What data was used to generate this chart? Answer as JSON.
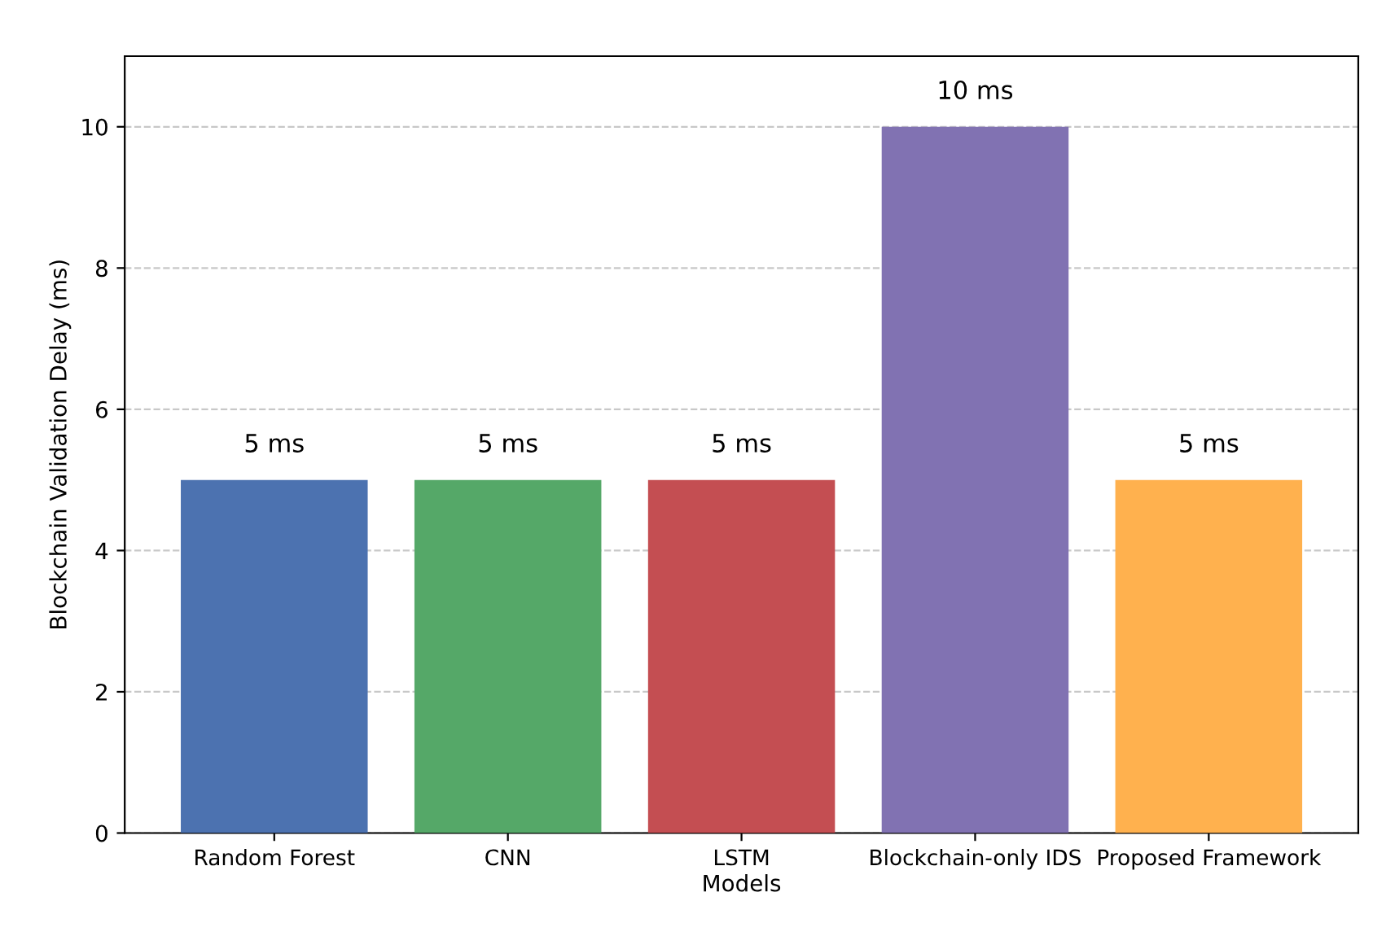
{
  "chart_data": {
    "type": "bar",
    "xlabel": "Models",
    "ylabel": "Blockchain Validation Delay (ms)",
    "categories": [
      "Random Forest",
      "CNN",
      "LSTM",
      "Blockchain-only IDS",
      "Proposed Framework"
    ],
    "values": [
      5,
      5,
      5,
      10,
      5
    ],
    "colors": [
      "#4c72b0",
      "#55a868",
      "#c44e52",
      "#8172b2",
      "#ffb14e"
    ],
    "value_labels": [
      "5 ms",
      "5 ms",
      "5 ms",
      "10 ms",
      "5 ms"
    ],
    "ylim": [
      0,
      11
    ],
    "yticks": [
      0,
      2,
      4,
      6,
      8,
      10
    ],
    "grid": "y"
  }
}
